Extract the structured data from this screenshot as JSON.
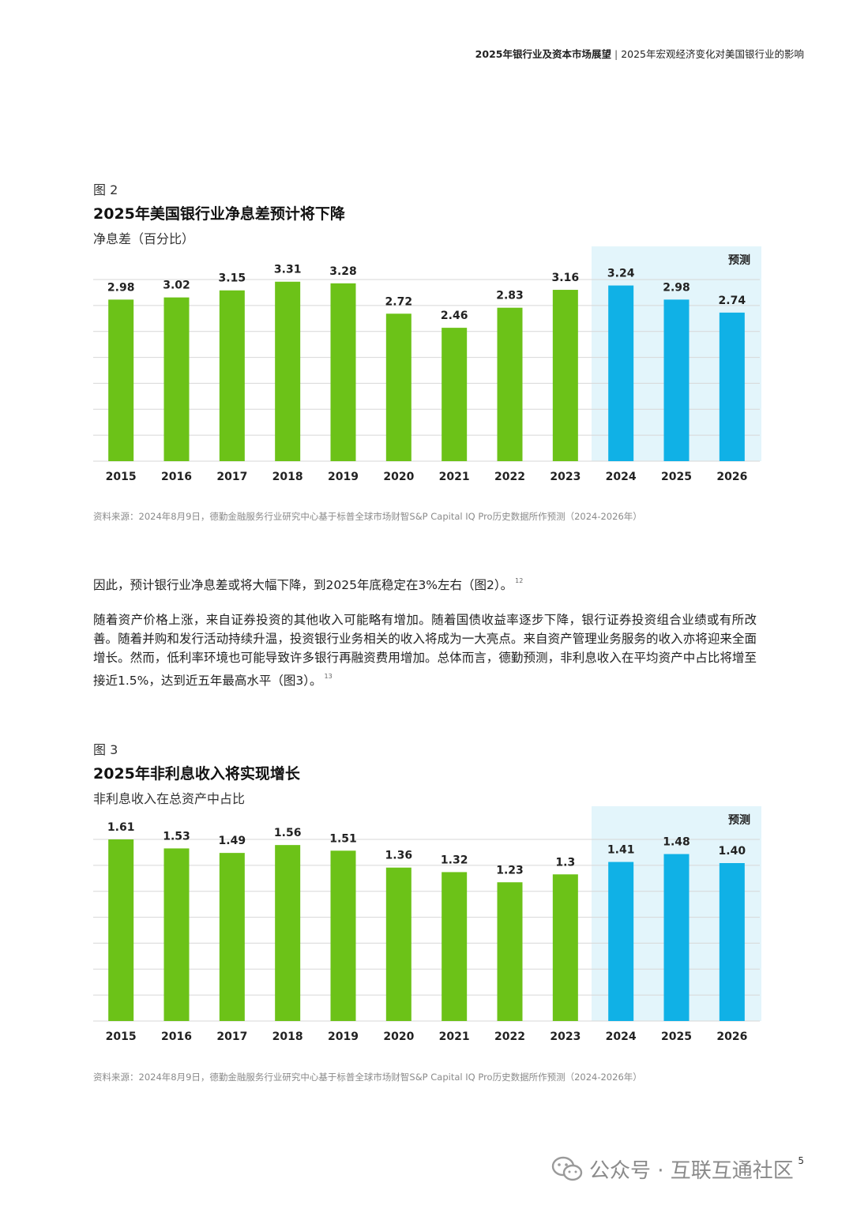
{
  "header": {
    "doc_title": "2025年银行业及资本市场展望",
    "separator": "|",
    "section_title": "2025年宏观经济变化对美国银行业的影响"
  },
  "figure2": {
    "label": "图 2",
    "title": "2025年美国银行业净息差预计将下降",
    "subtitle": "净息差（百分比）",
    "source": "资料来源：2024年8月9日，德勤金融服务行业研究中心基于标普全球市场财智S&P Capital IQ Pro历史数据所作预测（2024-2026年）"
  },
  "paragraphs": {
    "p1": "因此，预计银行业净息差或将大幅下降，到2025年底稳定在3%左右（图2）。",
    "p1_ref": "12",
    "p2": "随着资产价格上涨，来自证券投资的其他收入可能略有增加。随着国债收益率逐步下降，银行证券投资组合业绩或有所改善。随着并购和发行活动持续升温，投资银行业务相关的收入将成为一大亮点。来自资产管理业务服务的收入亦将迎来全面增长。然而，低利率环境也可能导致许多银行再融资费用增加。总体而言，德勤预测，非利息收入在平均资产中占比将增至接近1.5%，达到近五年最高水平（图3）。",
    "p2_ref": "13"
  },
  "figure3": {
    "label": "图 3",
    "title": "2025年非利息收入将实现增长",
    "subtitle": "非利息收入在总资产中占比",
    "source": "资料来源：2024年8月9日，德勤金融服务行业研究中心基于标普全球市场财智S&P Capital IQ Pro历史数据所作预测（2024-2026年）"
  },
  "chart_data": [
    {
      "type": "bar",
      "categories": [
        "2015",
        "2016",
        "2017",
        "2018",
        "2019",
        "2020",
        "2021",
        "2022",
        "2023",
        "2024",
        "2025",
        "2026"
      ],
      "values": [
        2.98,
        3.02,
        3.15,
        3.31,
        3.28,
        2.72,
        2.46,
        2.83,
        3.16,
        3.24,
        2.98,
        2.74
      ],
      "value_labels": [
        "2.98",
        "3.02",
        "3.15",
        "3.31",
        "3.28",
        "2.72",
        "2.46",
        "2.83",
        "3.16",
        "3.24",
        "2.98",
        "2.74"
      ],
      "title": "2025年美国银行业净息差预计将下降",
      "ylabel": "净息差（百分比）",
      "forecast_label": "预测",
      "forecast_start_index": 9,
      "ylim": [
        0,
        3.35
      ],
      "grid": true,
      "colors": {
        "actual": "#6cc218",
        "forecast": "#10b1e6",
        "forecast_bg": "#e3f5fb",
        "grid": "#d7d7d7"
      }
    },
    {
      "type": "bar",
      "categories": [
        "2015",
        "2016",
        "2017",
        "2018",
        "2019",
        "2020",
        "2021",
        "2022",
        "2023",
        "2024",
        "2025",
        "2026"
      ],
      "values": [
        1.61,
        1.53,
        1.49,
        1.56,
        1.51,
        1.36,
        1.32,
        1.23,
        1.3,
        1.41,
        1.48,
        1.4
      ],
      "value_labels": [
        "1.61",
        "1.53",
        "1.49",
        "1.56",
        "1.51",
        "1.36",
        "1.32",
        "1.23",
        "1.3",
        "1.41",
        "1.48",
        "1.40"
      ],
      "title": "2025年非利息收入将实现增长",
      "ylabel": "非利息收入在总资产中占比",
      "forecast_label": "预测",
      "forecast_start_index": 9,
      "ylim": [
        0,
        1.61
      ],
      "grid": true,
      "colors": {
        "actual": "#6cc218",
        "forecast": "#10b1e6",
        "forecast_bg": "#e3f5fb",
        "grid": "#d7d7d7"
      }
    }
  ],
  "footer": {
    "page_number": "5",
    "watermark": "公众号 · 互联互通社区"
  }
}
